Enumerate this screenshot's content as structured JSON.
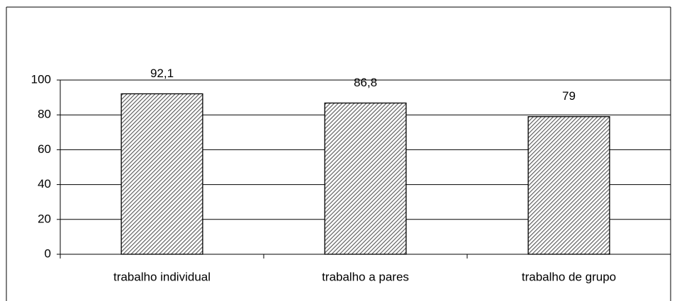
{
  "chart_data": {
    "type": "bar",
    "categories": [
      "trabalho individual",
      "trabalho a pares",
      "trabalho de grupo"
    ],
    "values": [
      92.1,
      86.8,
      79
    ],
    "value_labels": [
      "92,1",
      "86,8",
      "79"
    ],
    "color": "#555555",
    "ylim": [
      0,
      100
    ],
    "yticks": [
      0,
      20,
      40,
      60,
      80,
      100
    ],
    "grid": true
  }
}
